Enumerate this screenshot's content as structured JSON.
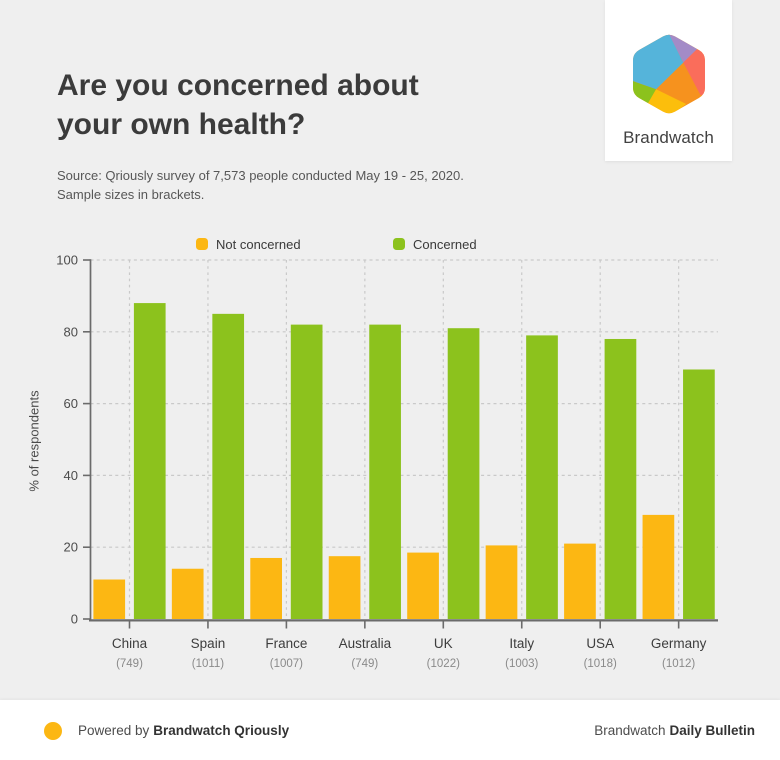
{
  "page": {
    "background_color": "#efefef",
    "footer_background_color": "#ffffff"
  },
  "header": {
    "title_line1": "Are you concerned about",
    "title_line2": "your own health?",
    "source_line1": "Source: Qriously survey of 7,573 people conducted May 19 - 25, 2020.",
    "source_line2": "Sample sizes in brackets.",
    "logo_text": "Brandwatch",
    "logo_colors": {
      "blue": "#55b4da",
      "purple": "#a38bc7",
      "red": "#fa6d5b",
      "orange": "#f6921e",
      "yellow": "#fcbe0c",
      "green": "#8cc21d"
    }
  },
  "legend": [
    {
      "label": "Not concerned",
      "color": "#fcb713"
    },
    {
      "label": "Concerned",
      "color": "#8cc21d"
    }
  ],
  "chart_data": {
    "type": "bar",
    "title": "Are you concerned about your own health?",
    "categories": [
      "China",
      "Spain",
      "France",
      "Australia",
      "UK",
      "Italy",
      "USA",
      "Germany"
    ],
    "sample_sizes": [
      "(749)",
      "(1011)",
      "(1007)",
      "(749)",
      "(1022)",
      "(1003)",
      "(1018)",
      "(1012)"
    ],
    "series": [
      {
        "name": "Not concerned",
        "color": "#fcb713",
        "values": [
          11,
          14,
          17,
          17.5,
          18.5,
          20.5,
          21,
          29
        ]
      },
      {
        "name": "Concerned",
        "color": "#8cc21d",
        "values": [
          88,
          85,
          82,
          82,
          81,
          79,
          78,
          69.5
        ]
      }
    ],
    "xlabel": "",
    "ylabel": "% of respondents",
    "ylim": [
      0,
      100
    ],
    "yticks": [
      0,
      20,
      40,
      60,
      80,
      100
    ],
    "grid": true,
    "legend_position": "top"
  },
  "footer": {
    "powered_by_prefix": "Powered by",
    "powered_by_brand": "Brandwatch Qriously",
    "bulletin_prefix": "Brandwatch",
    "bulletin_bold": "Daily Bulletin",
    "dot_color": "#fcb713"
  }
}
